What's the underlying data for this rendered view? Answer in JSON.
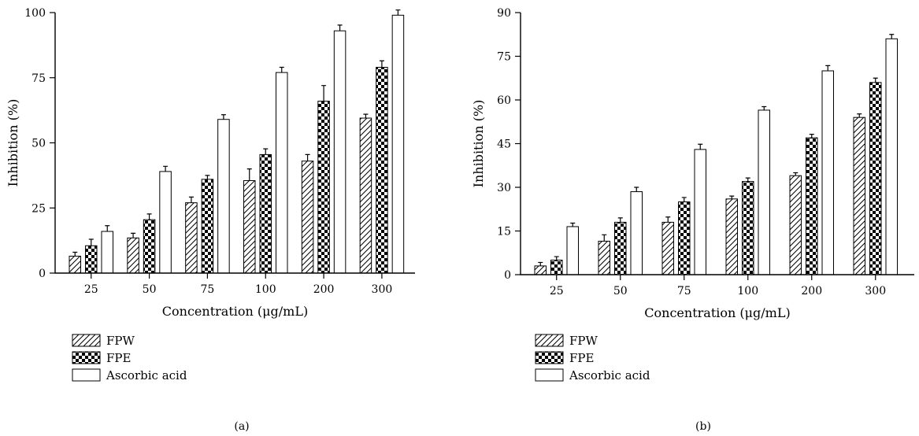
{
  "chart_data": [
    {
      "type": "bar",
      "panel_label": "(a)",
      "xlabel": "Concentration (μg/mL)",
      "ylabel": "Inhibition (%)",
      "categories": [
        "25",
        "50",
        "75",
        "100",
        "200",
        "300"
      ],
      "ylim": [
        0,
        100
      ],
      "yticks": [
        0,
        25,
        50,
        75,
        100
      ],
      "legend_position": "below",
      "series": [
        {
          "name": "FPW",
          "pattern": "diagonal-hatch",
          "values": [
            6.5,
            13.5,
            27,
            35.5,
            43,
            59.5
          ],
          "errors": [
            1.5,
            1.8,
            2.2,
            4.5,
            2.5,
            1.5
          ]
        },
        {
          "name": "FPE",
          "pattern": "checkerboard",
          "values": [
            10.5,
            20.5,
            36,
            45.5,
            66,
            79
          ],
          "errors": [
            2.5,
            2.2,
            1.5,
            2.2,
            6,
            2.5
          ]
        },
        {
          "name": "Ascorbic acid",
          "pattern": "white",
          "values": [
            16,
            39,
            59,
            77,
            93,
            99
          ],
          "errors": [
            2.2,
            2.0,
            1.8,
            2.0,
            2.2,
            2.0
          ]
        }
      ]
    },
    {
      "type": "bar",
      "panel_label": "(b)",
      "xlabel": "Concentration (μg/mL)",
      "ylabel": "Inhibition (%)",
      "categories": [
        "25",
        "50",
        "75",
        "100",
        "200",
        "300"
      ],
      "ylim": [
        0,
        90
      ],
      "yticks": [
        0,
        15,
        30,
        45,
        60,
        75,
        90
      ],
      "legend_position": "below",
      "series": [
        {
          "name": "FPW",
          "pattern": "diagonal-hatch",
          "values": [
            3,
            11.5,
            18,
            26,
            34,
            54
          ],
          "errors": [
            1.2,
            2.2,
            1.8,
            1.0,
            1.0,
            1.2
          ]
        },
        {
          "name": "FPE",
          "pattern": "checkerboard",
          "values": [
            5,
            18,
            25,
            32,
            47,
            66
          ],
          "errors": [
            1.2,
            1.5,
            1.5,
            1.2,
            1.2,
            1.5
          ]
        },
        {
          "name": "Ascorbic acid",
          "pattern": "white",
          "values": [
            16.5,
            28.5,
            43,
            56.5,
            70,
            81
          ],
          "errors": [
            1.2,
            1.5,
            1.8,
            1.2,
            1.8,
            1.5
          ]
        }
      ]
    }
  ]
}
